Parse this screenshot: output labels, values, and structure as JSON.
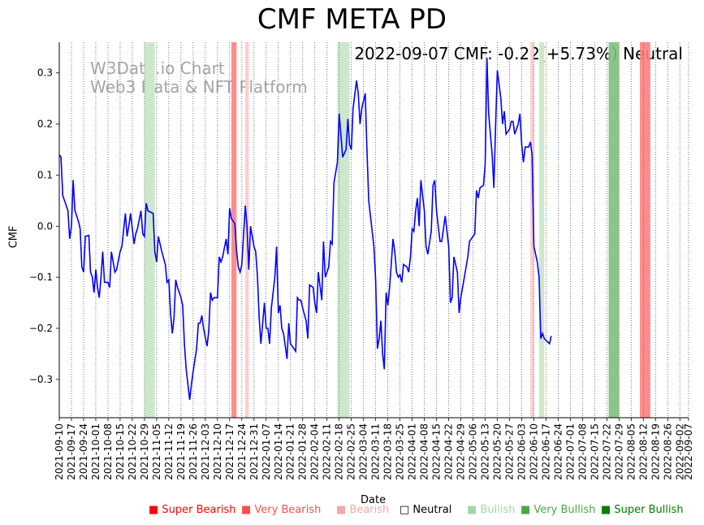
{
  "chart_data": {
    "type": "line",
    "title": "CMF META PD",
    "xlabel": "Date",
    "ylabel": "CMF",
    "annotation": "2022-09-07 CMF: -0.22(+5.73%) Neutral",
    "watermark": [
      "W3Data.io Chart",
      "Web3 Data & NFT Platform"
    ],
    "ylim": [
      -0.375,
      0.36
    ],
    "yticks": [
      -0.3,
      -0.2,
      -0.1,
      0.0,
      0.1,
      0.2,
      0.3
    ],
    "ytick_labels": [
      "−0.3",
      "−0.2",
      "−0.1",
      "0.0",
      "0.1",
      "0.2",
      "0.3"
    ],
    "xlim": [
      "2021-09-10",
      "2022-09-07"
    ],
    "xtick_labels": [
      "2021-09-10",
      "2021-09-17",
      "2021-09-24",
      "2021-10-01",
      "2021-10-08",
      "2021-10-15",
      "2021-10-22",
      "2021-10-29",
      "2021-11-05",
      "2021-11-12",
      "2021-11-19",
      "2021-11-26",
      "2021-12-03",
      "2021-12-10",
      "2021-12-17",
      "2021-12-24",
      "2021-12-31",
      "2022-01-07",
      "2022-01-14",
      "2022-01-21",
      "2022-01-28",
      "2022-02-04",
      "2022-02-11",
      "2022-02-18",
      "2022-02-25",
      "2022-03-04",
      "2022-03-11",
      "2022-03-18",
      "2022-03-25",
      "2022-04-01",
      "2022-04-08",
      "2022-04-15",
      "2022-04-22",
      "2022-04-29",
      "2022-05-06",
      "2022-05-13",
      "2022-05-20",
      "2022-05-27",
      "2022-06-03",
      "2022-06-10",
      "2022-06-17",
      "2022-06-24",
      "2022-07-01",
      "2022-07-08",
      "2022-07-15",
      "2022-07-22",
      "2022-07-29",
      "2022-08-05",
      "2022-08-12",
      "2022-08-19",
      "2022-08-26",
      "2022-09-02",
      "2022-09-07"
    ],
    "grid": "vertical dotted",
    "series": [
      {
        "color": "#0000ff",
        "points": [
          [
            "2021-09-10",
            0.14
          ],
          [
            "2021-09-11",
            0.135
          ],
          [
            "2021-09-12",
            0.06
          ],
          [
            "2021-09-14",
            0.04
          ],
          [
            "2021-09-15",
            0.03
          ],
          [
            "2021-09-16",
            -0.025
          ],
          [
            "2021-09-17",
            0.0
          ],
          [
            "2021-09-18",
            0.09
          ],
          [
            "2021-09-19",
            0.03
          ],
          [
            "2021-09-21",
            0.01
          ],
          [
            "2021-09-22",
            -0.005
          ],
          [
            "2021-09-23",
            -0.08
          ],
          [
            "2021-09-24",
            -0.09
          ],
          [
            "2021-09-25",
            -0.02
          ],
          [
            "2021-09-27",
            -0.018
          ],
          [
            "2021-09-28",
            -0.09
          ],
          [
            "2021-09-29",
            -0.1
          ],
          [
            "2021-09-30",
            -0.13
          ],
          [
            "2021-10-01",
            -0.085
          ],
          [
            "2021-10-02",
            -0.12
          ],
          [
            "2021-10-03",
            -0.14
          ],
          [
            "2021-10-04",
            -0.1
          ],
          [
            "2021-10-05",
            -0.05
          ],
          [
            "2021-10-06",
            -0.11
          ],
          [
            "2021-10-08",
            -0.11
          ],
          [
            "2021-10-09",
            -0.12
          ],
          [
            "2021-10-10",
            -0.05
          ],
          [
            "2021-10-12",
            -0.09
          ],
          [
            "2021-10-13",
            -0.085
          ],
          [
            "2021-10-15",
            -0.05
          ],
          [
            "2021-10-16",
            -0.04
          ],
          [
            "2021-10-18",
            0.025
          ],
          [
            "2021-10-19",
            -0.02
          ],
          [
            "2021-10-20",
            0.0
          ],
          [
            "2021-10-21",
            0.025
          ],
          [
            "2021-10-23",
            -0.035
          ],
          [
            "2021-10-24",
            -0.015
          ],
          [
            "2021-10-25",
            -0.005
          ],
          [
            "2021-10-27",
            0.03
          ],
          [
            "2021-10-28",
            -0.015
          ],
          [
            "2021-10-29",
            -0.02
          ],
          [
            "2021-10-30",
            0.045
          ],
          [
            "2021-10-31",
            0.03
          ],
          [
            "2021-11-03",
            0.025
          ],
          [
            "2021-11-04",
            -0.05
          ],
          [
            "2021-11-05",
            -0.07
          ],
          [
            "2021-11-06",
            -0.02
          ],
          [
            "2021-11-08",
            -0.05
          ],
          [
            "2021-11-10",
            -0.075
          ],
          [
            "2021-11-11",
            -0.11
          ],
          [
            "2021-11-12",
            -0.105
          ],
          [
            "2021-11-13",
            -0.17
          ],
          [
            "2021-11-14",
            -0.21
          ],
          [
            "2021-11-15",
            -0.18
          ],
          [
            "2021-11-16",
            -0.105
          ],
          [
            "2021-11-17",
            -0.12
          ],
          [
            "2021-11-19",
            -0.14
          ],
          [
            "2021-11-20",
            -0.155
          ],
          [
            "2021-11-21",
            -0.23
          ],
          [
            "2021-11-22",
            -0.28
          ],
          [
            "2021-11-24",
            -0.34
          ],
          [
            "2021-11-25",
            -0.31
          ],
          [
            "2021-11-26",
            -0.285
          ],
          [
            "2021-11-28",
            -0.24
          ],
          [
            "2021-11-29",
            -0.19
          ],
          [
            "2021-11-30",
            -0.19
          ],
          [
            "2021-12-01",
            -0.175
          ],
          [
            "2021-12-02",
            -0.2
          ],
          [
            "2021-12-04",
            -0.235
          ],
          [
            "2021-12-05",
            -0.205
          ],
          [
            "2021-12-06",
            -0.13
          ],
          [
            "2021-12-07",
            -0.145
          ],
          [
            "2021-12-08",
            -0.14
          ],
          [
            "2021-12-10",
            -0.14
          ],
          [
            "2021-12-11",
            -0.06
          ],
          [
            "2021-12-12",
            -0.07
          ],
          [
            "2021-12-13",
            -0.06
          ],
          [
            "2021-12-15",
            -0.025
          ],
          [
            "2021-12-16",
            -0.055
          ],
          [
            "2021-12-17",
            0.035
          ],
          [
            "2021-12-18",
            0.015
          ],
          [
            "2021-12-20",
            0.005
          ],
          [
            "2021-12-21",
            -0.05
          ],
          [
            "2021-12-22",
            -0.08
          ],
          [
            "2021-12-23",
            -0.09
          ],
          [
            "2021-12-24",
            -0.075
          ],
          [
            "2021-12-26",
            0.04
          ],
          [
            "2021-12-27",
            0.0
          ],
          [
            "2021-12-28",
            -0.085
          ],
          [
            "2021-12-29",
            0.0
          ],
          [
            "2021-12-31",
            -0.04
          ],
          [
            "2022-01-01",
            -0.05
          ],
          [
            "2022-01-02",
            -0.1
          ],
          [
            "2022-01-03",
            -0.18
          ],
          [
            "2022-01-04",
            -0.23
          ],
          [
            "2022-01-05",
            -0.19
          ],
          [
            "2022-01-06",
            -0.15
          ],
          [
            "2022-01-07",
            -0.2
          ],
          [
            "2022-01-08",
            -0.2
          ],
          [
            "2022-01-09",
            -0.23
          ],
          [
            "2022-01-10",
            -0.16
          ],
          [
            "2022-01-12",
            -0.1
          ],
          [
            "2022-01-13",
            -0.04
          ],
          [
            "2022-01-14",
            -0.17
          ],
          [
            "2022-01-15",
            -0.155
          ],
          [
            "2022-01-16",
            -0.2
          ],
          [
            "2022-01-17",
            -0.21
          ],
          [
            "2022-01-19",
            -0.26
          ],
          [
            "2022-01-20",
            -0.19
          ],
          [
            "2022-01-21",
            -0.23
          ],
          [
            "2022-01-23",
            -0.24
          ],
          [
            "2022-01-24",
            -0.245
          ],
          [
            "2022-01-25",
            -0.14
          ],
          [
            "2022-01-26",
            -0.145
          ],
          [
            "2022-01-27",
            -0.145
          ],
          [
            "2022-01-28",
            -0.16
          ],
          [
            "2022-01-30",
            -0.185
          ],
          [
            "2022-01-31",
            -0.22
          ],
          [
            "2022-02-01",
            -0.115
          ],
          [
            "2022-02-03",
            -0.12
          ],
          [
            "2022-02-04",
            -0.15
          ],
          [
            "2022-02-05",
            -0.17
          ],
          [
            "2022-02-06",
            -0.09
          ],
          [
            "2022-02-08",
            -0.145
          ],
          [
            "2022-02-09",
            -0.03
          ],
          [
            "2022-02-10",
            -0.1
          ],
          [
            "2022-02-12",
            -0.08
          ],
          [
            "2022-02-13",
            -0.03
          ],
          [
            "2022-02-14",
            -0.035
          ],
          [
            "2022-02-15",
            0.085
          ],
          [
            "2022-02-17",
            0.125
          ],
          [
            "2022-02-18",
            0.22
          ],
          [
            "2022-02-19",
            0.18
          ],
          [
            "2022-02-20",
            0.135
          ],
          [
            "2022-02-22",
            0.15
          ],
          [
            "2022-02-23",
            0.21
          ],
          [
            "2022-02-24",
            0.16
          ],
          [
            "2022-02-25",
            0.15
          ],
          [
            "2022-02-26",
            0.23
          ],
          [
            "2022-02-28",
            0.285
          ],
          [
            "2022-03-01",
            0.26
          ],
          [
            "2022-03-02",
            0.2
          ],
          [
            "2022-03-03",
            0.23
          ],
          [
            "2022-03-05",
            0.26
          ],
          [
            "2022-03-06",
            0.15
          ],
          [
            "2022-03-07",
            0.05
          ],
          [
            "2022-03-08",
            0.02
          ],
          [
            "2022-03-10",
            -0.04
          ],
          [
            "2022-03-11",
            -0.105
          ],
          [
            "2022-03-12",
            -0.24
          ],
          [
            "2022-03-13",
            -0.22
          ],
          [
            "2022-03-14",
            -0.185
          ],
          [
            "2022-03-15",
            -0.25
          ],
          [
            "2022-03-16",
            -0.28
          ],
          [
            "2022-03-17",
            -0.13
          ],
          [
            "2022-03-18",
            -0.155
          ],
          [
            "2022-03-19",
            -0.12
          ],
          [
            "2022-03-21",
            -0.025
          ],
          [
            "2022-03-22",
            -0.05
          ],
          [
            "2022-03-23",
            -0.09
          ],
          [
            "2022-03-24",
            -0.1
          ],
          [
            "2022-03-25",
            -0.095
          ],
          [
            "2022-03-26",
            -0.11
          ],
          [
            "2022-03-27",
            -0.075
          ],
          [
            "2022-03-29",
            -0.08
          ],
          [
            "2022-03-30",
            -0.09
          ],
          [
            "2022-03-31",
            -0.06
          ],
          [
            "2022-04-01",
            -0.005
          ],
          [
            "2022-04-02",
            -0.01
          ],
          [
            "2022-04-03",
            0.03
          ],
          [
            "2022-04-04",
            0.055
          ],
          [
            "2022-04-05",
            0.0
          ],
          [
            "2022-04-06",
            0.09
          ],
          [
            "2022-04-08",
            0.03
          ],
          [
            "2022-04-09",
            -0.04
          ],
          [
            "2022-04-10",
            -0.055
          ],
          [
            "2022-04-12",
            -0.01
          ],
          [
            "2022-04-13",
            0.08
          ],
          [
            "2022-04-14",
            0.09
          ],
          [
            "2022-04-15",
            0.03
          ],
          [
            "2022-04-16",
            0.0
          ],
          [
            "2022-04-17",
            -0.03
          ],
          [
            "2022-04-18",
            -0.03
          ],
          [
            "2022-04-20",
            0.02
          ],
          [
            "2022-04-22",
            -0.04
          ],
          [
            "2022-04-23",
            -0.15
          ],
          [
            "2022-04-24",
            -0.14
          ],
          [
            "2022-04-25",
            -0.06
          ],
          [
            "2022-04-27",
            -0.09
          ],
          [
            "2022-04-28",
            -0.17
          ],
          [
            "2022-04-29",
            -0.14
          ],
          [
            "2022-04-30",
            -0.12
          ],
          [
            "2022-05-02",
            -0.08
          ],
          [
            "2022-05-03",
            -0.06
          ],
          [
            "2022-05-04",
            -0.03
          ],
          [
            "2022-05-06",
            -0.02
          ],
          [
            "2022-05-07",
            -0.015
          ],
          [
            "2022-05-08",
            0.07
          ],
          [
            "2022-05-09",
            0.055
          ],
          [
            "2022-05-10",
            0.075
          ],
          [
            "2022-05-12",
            0.08
          ],
          [
            "2022-05-13",
            0.12
          ],
          [
            "2022-05-14",
            0.33
          ],
          [
            "2022-05-15",
            0.22
          ],
          [
            "2022-05-17",
            0.14
          ],
          [
            "2022-05-18",
            0.075
          ],
          [
            "2022-05-19",
            0.2
          ],
          [
            "2022-05-20",
            0.305
          ],
          [
            "2022-05-22",
            0.25
          ],
          [
            "2022-05-23",
            0.2
          ],
          [
            "2022-05-24",
            0.225
          ],
          [
            "2022-05-25",
            0.18
          ],
          [
            "2022-05-27",
            0.19
          ],
          [
            "2022-05-28",
            0.205
          ],
          [
            "2022-05-29",
            0.205
          ],
          [
            "2022-05-30",
            0.18
          ],
          [
            "2022-06-01",
            0.2
          ],
          [
            "2022-06-02",
            0.22
          ],
          [
            "2022-06-03",
            0.16
          ],
          [
            "2022-06-04",
            0.125
          ],
          [
            "2022-06-05",
            0.155
          ],
          [
            "2022-06-07",
            0.155
          ],
          [
            "2022-06-08",
            0.165
          ],
          [
            "2022-06-09",
            0.14
          ],
          [
            "2022-06-10",
            -0.04
          ],
          [
            "2022-06-12",
            -0.07
          ],
          [
            "2022-06-13",
            -0.1
          ],
          [
            "2022-06-14",
            -0.22
          ],
          [
            "2022-06-15",
            -0.21
          ],
          [
            "2022-06-16",
            -0.22
          ],
          [
            "2022-06-19",
            -0.23
          ],
          [
            "2022-06-20",
            -0.215
          ]
        ]
      }
    ],
    "shaded_regions": [
      {
        "start": "2021-10-29",
        "end": "2021-11-04",
        "sentiment": "Bullish"
      },
      {
        "start": "2021-12-18",
        "end": "2021-12-21",
        "sentiment": "Very Bearish"
      },
      {
        "start": "2021-12-26",
        "end": "2021-12-28",
        "sentiment": "Bearish"
      },
      {
        "start": "2022-02-17",
        "end": "2022-02-24",
        "sentiment": "Bullish"
      },
      {
        "start": "2022-06-08",
        "end": "2022-06-10",
        "sentiment": "Bearish"
      },
      {
        "start": "2022-06-13",
        "end": "2022-06-16",
        "sentiment": "Bullish"
      },
      {
        "start": "2022-07-23",
        "end": "2022-07-29",
        "sentiment": "Very Bullish"
      },
      {
        "start": "2022-08-10",
        "end": "2022-08-16",
        "sentiment": "Very Bearish"
      }
    ],
    "legend": [
      {
        "label": "Super Bearish",
        "color": "#ff0000",
        "marker": "■"
      },
      {
        "label": "Very Bearish",
        "color": "#ff4d4d",
        "marker": "■"
      },
      {
        "label": "Bearish",
        "color": "#f7a8a8",
        "marker": "■"
      },
      {
        "label": "Neutral",
        "color": "#000000",
        "marker": "□"
      },
      {
        "label": "Bullish",
        "color": "#a6d6a6",
        "marker": "■"
      },
      {
        "label": "Very Bullish",
        "color": "#4aa64a",
        "marker": "■"
      },
      {
        "label": "Super Bullish",
        "color": "#008000",
        "marker": "■"
      }
    ],
    "region_colors": {
      "Super Bearish": "#ff0000",
      "Very Bearish": "#ff7f7f",
      "Bearish": "#ffcccc",
      "Bullish": "#cce8cc",
      "Very Bullish": "#7fbf7f",
      "Super Bullish": "#008000"
    }
  }
}
